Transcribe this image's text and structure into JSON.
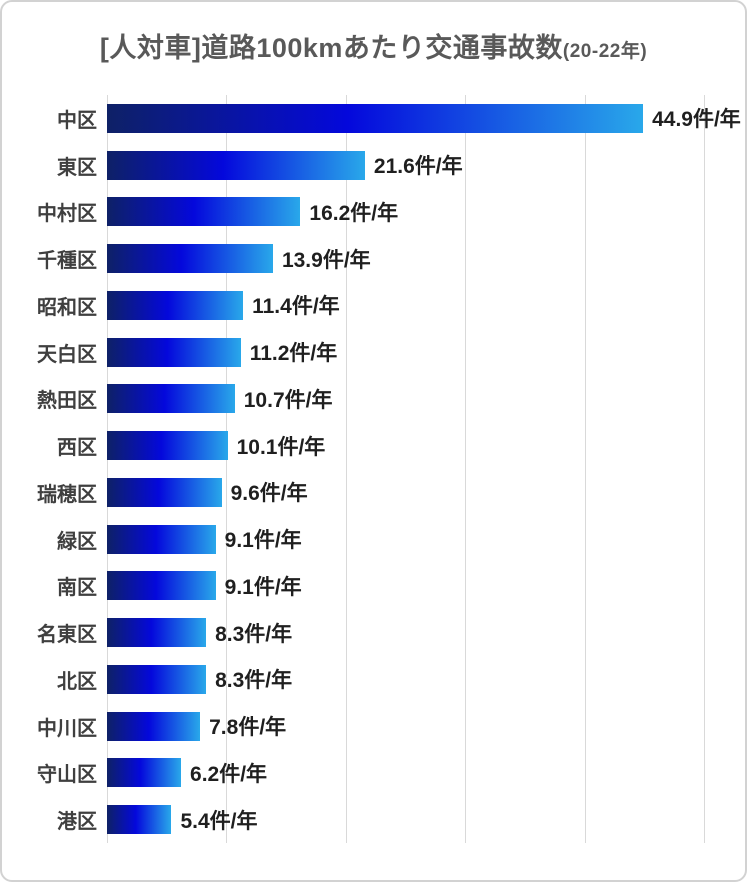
{
  "frame": {
    "background": "#ffffff",
    "border_color": "#d2d2d2"
  },
  "title": {
    "main": "[人対車]道路100kmあたり交通事故数",
    "suffix": "(20-22年)",
    "color": "#595959"
  },
  "chart_data": {
    "type": "bar",
    "orientation": "horizontal",
    "title": "[人対車]道路100kmあたり交通事故数(20-22年)",
    "categories": [
      "中区",
      "東区",
      "中村区",
      "千種区",
      "昭和区",
      "天白区",
      "熱田区",
      "西区",
      "瑞穂区",
      "緑区",
      "南区",
      "名東区",
      "北区",
      "中川区",
      "守山区",
      "港区"
    ],
    "values": [
      44.9,
      21.6,
      16.2,
      13.9,
      11.4,
      11.2,
      10.7,
      10.1,
      9.6,
      9.1,
      9.1,
      8.3,
      8.3,
      7.8,
      6.2,
      5.4
    ],
    "value_labels": [
      "44.9件/年",
      "21.6件/年",
      "16.2件/年",
      "13.9件/年",
      "11.4件/年",
      "11.2件/年",
      "10.7件/年",
      "10.1件/年",
      "9.6件/年",
      "9.1件/年",
      "9.1件/年",
      "8.3件/年",
      "8.3件/年",
      "7.8件/年",
      "6.2件/年",
      "5.4件/年"
    ],
    "unit": "件/年",
    "xlabel": "",
    "ylabel": "",
    "xlim": [
      0,
      50
    ],
    "gridline_step": 10,
    "grid": true,
    "legend": false,
    "gridline_color": "#d9d9d9",
    "bar_gradient": [
      "#0e2166",
      "#0408dc",
      "#29a8ea"
    ]
  }
}
